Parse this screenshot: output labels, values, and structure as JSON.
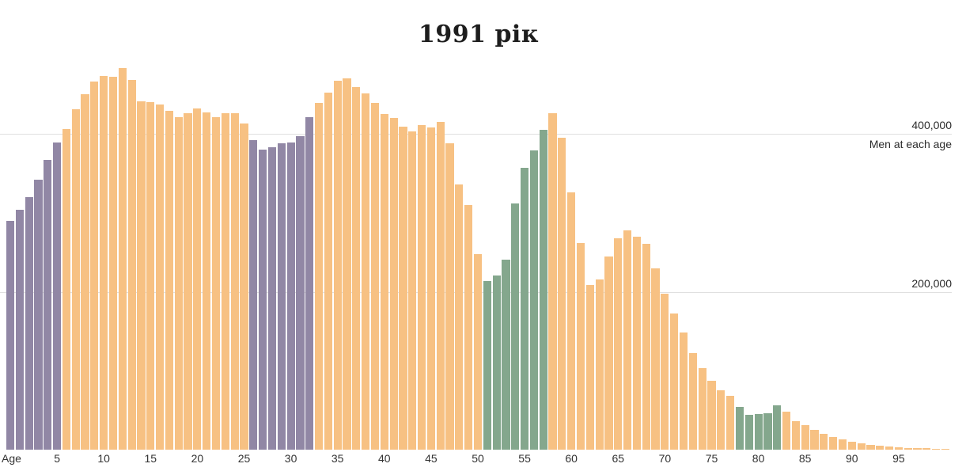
{
  "title": "1991 рік",
  "chart_data": {
    "type": "bar",
    "title": "1991 рік",
    "xlabel": "Age",
    "ylabel": "Men at each age",
    "x_axis": {
      "label": "Age",
      "tick_values": [
        5,
        10,
        15,
        20,
        25,
        30,
        35,
        40,
        45,
        50,
        55,
        60,
        65,
        70,
        75,
        80,
        85,
        90,
        95
      ],
      "range": [
        0,
        100
      ]
    },
    "y_axis": {
      "annotation": "Men at each age",
      "gridlines": [
        {
          "value": 400000,
          "label": "400,000"
        },
        {
          "value": 200000,
          "label": "200,000"
        }
      ],
      "range": [
        0,
        490000
      ],
      "grid": true
    },
    "legend_position": "right-of-400k-gridline",
    "ages": [
      0,
      1,
      2,
      3,
      4,
      5,
      6,
      7,
      8,
      9,
      10,
      11,
      12,
      13,
      14,
      15,
      16,
      17,
      18,
      19,
      20,
      21,
      22,
      23,
      24,
      25,
      26,
      27,
      28,
      29,
      30,
      31,
      32,
      33,
      34,
      35,
      36,
      37,
      38,
      39,
      40,
      41,
      42,
      43,
      44,
      45,
      46,
      47,
      48,
      49,
      50,
      51,
      52,
      53,
      54,
      55,
      56,
      57,
      58,
      59,
      60,
      61,
      62,
      63,
      64,
      65,
      66,
      67,
      68,
      69,
      70,
      71,
      72,
      73,
      74,
      75,
      76,
      77,
      78,
      79,
      80,
      81,
      82,
      83,
      84,
      85,
      86,
      87,
      88,
      89,
      90,
      91,
      92,
      93,
      94,
      95,
      96,
      97,
      98,
      99,
      100
    ],
    "values": [
      290000,
      304000,
      320000,
      342000,
      367000,
      389000,
      406000,
      431000,
      450000,
      466000,
      473000,
      472000,
      483000,
      468000,
      441000,
      440000,
      437000,
      429000,
      421000,
      426000,
      432000,
      427000,
      421000,
      426000,
      426000,
      413000,
      392000,
      380000,
      383000,
      388000,
      389000,
      397000,
      421000,
      439000,
      452000,
      467000,
      470000,
      459000,
      451000,
      439000,
      425000,
      420000,
      409000,
      403000,
      411000,
      408000,
      415000,
      388000,
      336000,
      310000,
      248000,
      214000,
      221000,
      241000,
      312000,
      357000,
      379000,
      405000,
      426000,
      395000,
      326000,
      262000,
      209000,
      216000,
      245000,
      268000,
      278000,
      270000,
      261000,
      230000,
      197000,
      172000,
      148000,
      122000,
      103000,
      87000,
      75000,
      68000,
      54000,
      44000,
      45000,
      46000,
      56000,
      48000,
      36000,
      31000,
      25000,
      20000,
      16000,
      13000,
      10000,
      8000,
      6000,
      5000,
      4000,
      3000,
      2500,
      2000,
      1800,
      1500,
      1200
    ],
    "colors": {
      "default_bar": "#f7c183",
      "highlight_purple": "#9187a5",
      "highlight_green": "#84a78d",
      "gridline": "#e0e0e0",
      "title_text": "#1d1d1d",
      "axis_text": "#333333"
    },
    "highlight_ranges": {
      "purple": [
        [
          0,
          5
        ],
        [
          26,
          32
        ]
      ],
      "green": [
        [
          51,
          57
        ],
        [
          78,
          82
        ]
      ]
    }
  }
}
